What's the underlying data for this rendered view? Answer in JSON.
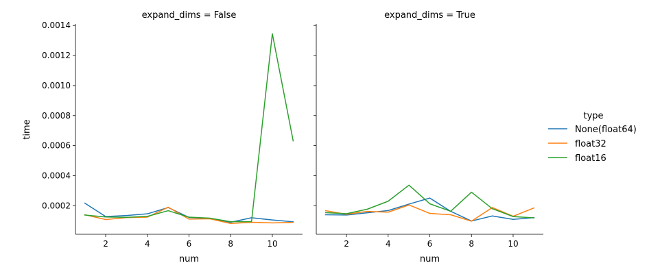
{
  "chart_data": {
    "type": "line",
    "x_label": "num",
    "y_label": "time",
    "legend_title": "type",
    "legend_placement": "right",
    "grid": false,
    "xlim": [
      0.55,
      11.45
    ],
    "ylim": [
      1e-05,
      0.00141
    ],
    "x_ticks": [
      2,
      4,
      6,
      8,
      10
    ],
    "y_ticks": [
      0.0002,
      0.0004,
      0.0006,
      0.0008,
      0.001,
      0.0012,
      0.0014
    ],
    "y_tick_labels": [
      "0.0002",
      "0.0004",
      "0.0006",
      "0.0008",
      "0.0010",
      "0.0012",
      "0.0014"
    ],
    "x": [
      1,
      2,
      3,
      4,
      5,
      6,
      7,
      8,
      9,
      10,
      11
    ],
    "series_colors": {
      "None(float64)": "#1f77b4",
      "float32": "#ff7f0e",
      "float16": "#2ca02c"
    },
    "panels": [
      {
        "title": "expand_dims = False",
        "series": [
          {
            "name": "None(float64)",
            "values": [
              0.000217,
              0.000128,
              0.000135,
              0.000146,
              0.000188,
              0.000122,
              0.000116,
              9e-05,
              0.00012,
              0.000105,
              9.3e-05
            ]
          },
          {
            "name": "float32",
            "values": [
              0.00014,
              0.000108,
              0.000121,
              0.000124,
              0.00019,
              0.000111,
              0.000113,
              8.2e-05,
              9e-05,
              8.6e-05,
              8.9e-05
            ]
          },
          {
            "name": "float16",
            "values": [
              0.000138,
              0.000125,
              0.000123,
              0.000129,
              0.000167,
              0.000124,
              0.000117,
              9.4e-05,
              9.4e-05,
              0.001345,
              0.000632
            ]
          }
        ]
      },
      {
        "title": "expand_dims = True",
        "series": [
          {
            "name": "None(float64)",
            "values": [
              0.00014,
              0.000138,
              0.000153,
              0.000168,
              0.000211,
              0.000251,
              0.000163,
              9.8e-05,
              0.000132,
              0.000109,
              0.000121
            ]
          },
          {
            "name": "float32",
            "values": [
              0.000167,
              0.000143,
              0.000162,
              0.000157,
              0.000205,
              0.000149,
              0.00014,
              9.7e-05,
              0.000188,
              0.00013,
              0.000185
            ]
          },
          {
            "name": "float16",
            "values": [
              0.000154,
              0.000147,
              0.000177,
              0.00023,
              0.000337,
              0.000213,
              0.000163,
              0.00029,
              0.00018,
              0.000128,
              0.000119
            ]
          }
        ]
      }
    ]
  }
}
